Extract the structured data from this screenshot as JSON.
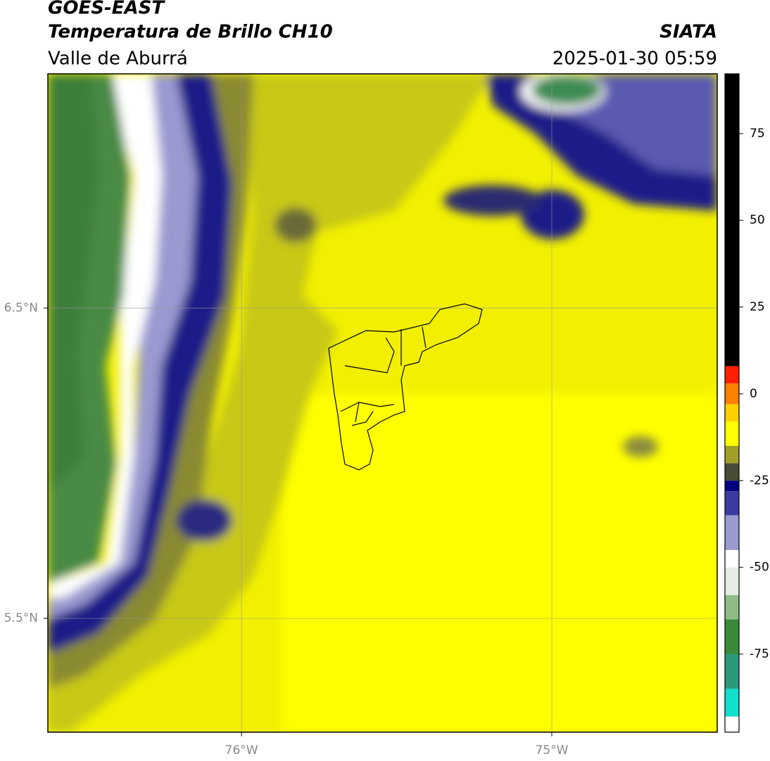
{
  "header": {
    "title": "GOES-EAST",
    "subtitle": "Temperatura de Brillo CH10",
    "region": "Valle de Aburrá",
    "source": "SIATA",
    "timestamp": "2025-01-30 05:59"
  },
  "map": {
    "xlim": [
      -76.624,
      -74.467
    ],
    "ylim": [
      5.133,
      7.255
    ],
    "xticks": [
      {
        "value": -76,
        "label": "76°W"
      },
      {
        "value": -75,
        "label": "75°W"
      }
    ],
    "yticks": [
      {
        "value": 6.5,
        "label": "6.5°N"
      },
      {
        "value": 5.5,
        "label": "5.5°N"
      }
    ],
    "grid": true
  },
  "colorbar": {
    "lim": [
      -97.5,
      92.2
    ],
    "ticks": [
      75,
      50,
      25,
      0,
      -25,
      -50,
      -75
    ],
    "colormap": [
      {
        "value": -97.5,
        "color": "#ffffff"
      },
      {
        "value": -93,
        "color": "#10e0cc"
      },
      {
        "value": -85,
        "color": "#2a9a7a"
      },
      {
        "value": -75,
        "color": "#3a8a3a"
      },
      {
        "value": -65,
        "color": "#8fbc84"
      },
      {
        "value": -58,
        "color": "#e4ece4"
      },
      {
        "value": -50,
        "color": "#ffffff"
      },
      {
        "value": -45,
        "color": "#9a9ad0"
      },
      {
        "value": -35,
        "color": "#3a3aa0"
      },
      {
        "value": -28,
        "color": "#000080"
      },
      {
        "value": -25,
        "color": "#4a4a38"
      },
      {
        "value": -20,
        "color": "#a0a028"
      },
      {
        "value": -15,
        "color": "#ffff00"
      },
      {
        "value": -8,
        "color": "#ffd000"
      },
      {
        "value": -3,
        "color": "#ff8000"
      },
      {
        "value": 3,
        "color": "#ff2000"
      },
      {
        "value": 8,
        "color": "#000000"
      }
    ]
  }
}
